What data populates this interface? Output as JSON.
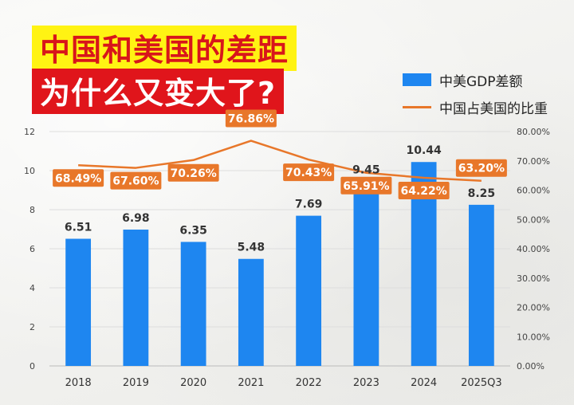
{
  "header": {
    "title_line1": "中国和美国的差距",
    "title_line2": "为什么又变大了?"
  },
  "legend": {
    "bar_label": "中美GDP差额",
    "line_label": "中国占美国的比重"
  },
  "colors": {
    "bar": "#1e86f0",
    "line": "#e8772a",
    "label_box": "#e8772a"
  },
  "chart_data": {
    "type": "bar",
    "categories": [
      "2018",
      "2019",
      "2020",
      "2021",
      "2022",
      "2023",
      "2024",
      "2025Q3"
    ],
    "series": [
      {
        "name": "中美GDP差额",
        "type": "bar",
        "axis": "left",
        "values": [
          6.51,
          6.98,
          6.35,
          5.48,
          7.69,
          9.45,
          10.44,
          8.25
        ],
        "labels": [
          "6.51",
          "6.98",
          "6.35",
          "5.48",
          "7.69",
          "9.45",
          "10.44",
          "8.25"
        ]
      },
      {
        "name": "中国占美国的比重",
        "type": "line",
        "axis": "right",
        "values": [
          68.49,
          67.6,
          70.26,
          76.86,
          70.43,
          65.91,
          64.22,
          63.2
        ],
        "labels": [
          "68.49%",
          "67.60%",
          "70.26%",
          "76.86%",
          "70.43%",
          "65.91%",
          "64.22%",
          "63.20%"
        ]
      }
    ],
    "y_left": {
      "min": 0,
      "max": 12,
      "ticks": [
        "0",
        "2",
        "4",
        "6",
        "8",
        "10",
        "12"
      ]
    },
    "y_right": {
      "min": 0,
      "max": 80,
      "ticks": [
        "0.00%",
        "10.00%",
        "20.00%",
        "30.00%",
        "40.00%",
        "50.00%",
        "60.00%",
        "70.00%",
        "80.00%"
      ]
    },
    "grid": true,
    "legend_position": "top-right"
  }
}
